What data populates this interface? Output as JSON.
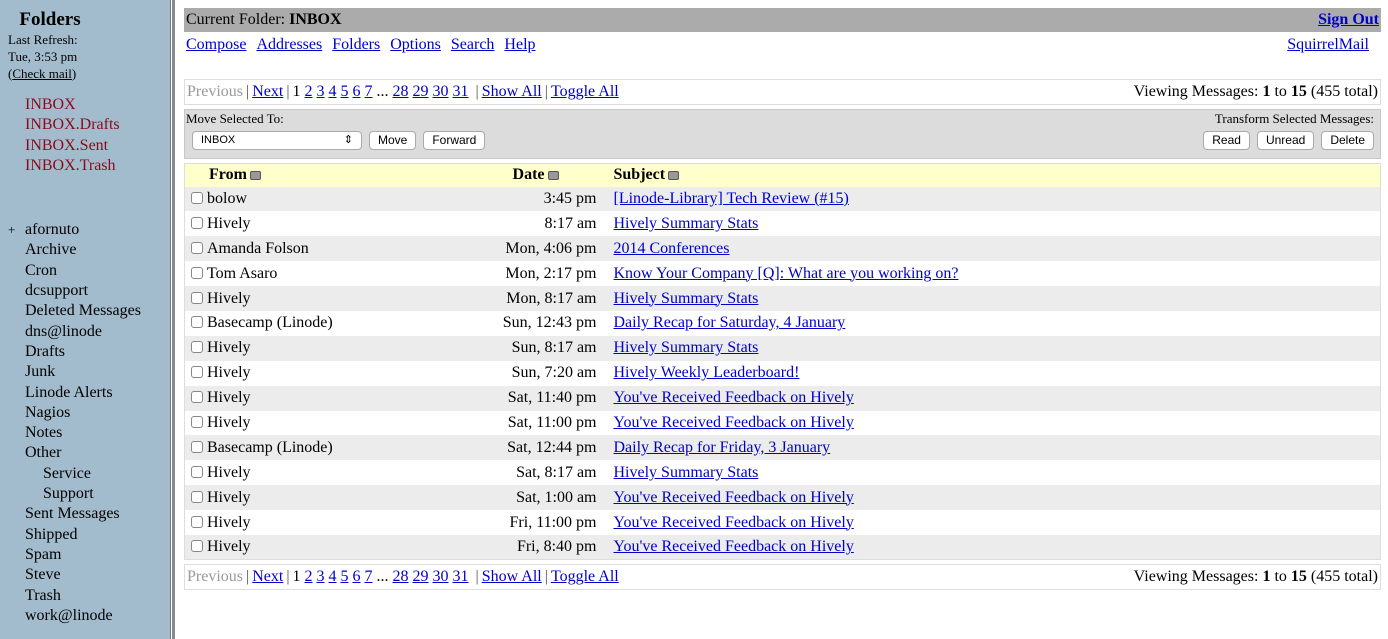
{
  "sidebar": {
    "title": "Folders",
    "last_refresh": "Last Refresh:",
    "refresh_time": "Tue, 3:53 pm",
    "check_mail": "Check mail",
    "inbox_folders": [
      "INBOX",
      "INBOX.Drafts",
      "INBOX.Sent",
      "INBOX.Trash"
    ],
    "folders": [
      {
        "label": "afornuto",
        "expand": "+"
      },
      {
        "label": "Archive"
      },
      {
        "label": "Cron"
      },
      {
        "label": "dcsupport"
      },
      {
        "label": "Deleted Messages"
      },
      {
        "label": "dns@linode"
      },
      {
        "label": "Drafts"
      },
      {
        "label": "Junk"
      },
      {
        "label": "Linode Alerts"
      },
      {
        "label": "Nagios"
      },
      {
        "label": "Notes"
      },
      {
        "label": "Other"
      },
      {
        "label": "Service",
        "sub": true
      },
      {
        "label": "Support",
        "sub": true
      },
      {
        "label": "Sent Messages"
      },
      {
        "label": "Shipped"
      },
      {
        "label": "Spam"
      },
      {
        "label": "Steve"
      },
      {
        "label": "Trash"
      },
      {
        "label": "work@linode"
      }
    ]
  },
  "header": {
    "current_folder_label": "Current Folder:",
    "current_folder": "INBOX",
    "sign_out": "Sign Out",
    "brand": "SquirrelMail",
    "nav": [
      "Compose",
      "Addresses",
      "Folders",
      "Options",
      "Search",
      "Help"
    ]
  },
  "pager": {
    "previous": "Previous",
    "next": "Next",
    "current": "1",
    "pages": [
      "2",
      "3",
      "4",
      "5",
      "6",
      "7"
    ],
    "ellipsis": "...",
    "last_pages": [
      "28",
      "29",
      "30",
      "31"
    ],
    "show_all": "Show All",
    "toggle_all": "Toggle All",
    "viewing_label": "Viewing Messages:",
    "from": "1",
    "to_word": "to",
    "to": "15",
    "total": "(455 total)"
  },
  "tools": {
    "move_label": "Move Selected To:",
    "folder_select": "INBOX",
    "move": "Move",
    "forward": "Forward",
    "transform_label": "Transform Selected Messages:",
    "read": "Read",
    "unread": "Unread",
    "delete": "Delete"
  },
  "table": {
    "columns": [
      "From",
      "Date",
      "Subject"
    ],
    "rows": [
      {
        "from": "bolow",
        "date": "3:45 pm",
        "subject": "[Linode-Library] Tech Review (#15)"
      },
      {
        "from": "Hively",
        "date": "8:17 am",
        "subject": "Hively Summary Stats"
      },
      {
        "from": "Amanda Folson",
        "date": "Mon, 4:06 pm",
        "subject": "2014 Conferences"
      },
      {
        "from": "Tom Asaro",
        "date": "Mon, 2:17 pm",
        "subject": "Know Your Company [Q]: What are you working on?"
      },
      {
        "from": "Hively",
        "date": "Mon, 8:17 am",
        "subject": "Hively Summary Stats"
      },
      {
        "from": "Basecamp (Linode)",
        "date": "Sun, 12:43 pm",
        "subject": "Daily Recap for Saturday, 4 January"
      },
      {
        "from": "Hively",
        "date": "Sun, 8:17 am",
        "subject": "Hively Summary Stats"
      },
      {
        "from": "Hively",
        "date": "Sun, 7:20 am",
        "subject": "Hively Weekly Leaderboard!"
      },
      {
        "from": "Hively",
        "date": "Sat, 11:40 pm",
        "subject": "You've Received Feedback on Hively"
      },
      {
        "from": "Hively",
        "date": "Sat, 11:00 pm",
        "subject": "You've Received Feedback on Hively"
      },
      {
        "from": "Basecamp (Linode)",
        "date": "Sat, 12:44 pm",
        "subject": "Daily Recap for Friday, 3 January"
      },
      {
        "from": "Hively",
        "date": "Sat, 8:17 am",
        "subject": "Hively Summary Stats"
      },
      {
        "from": "Hively",
        "date": "Sat, 1:00 am",
        "subject": "You've Received Feedback on Hively"
      },
      {
        "from": "Hively",
        "date": "Fri, 11:00 pm",
        "subject": "You've Received Feedback on Hively"
      },
      {
        "from": "Hively",
        "date": "Fri, 8:40 pm",
        "subject": "You've Received Feedback on Hively"
      }
    ]
  },
  "colors": {
    "sidebar_bg": "#a3bccd",
    "folder_red": "#8b0a1a",
    "link": "#0000cc",
    "header_bar": "#ababab",
    "table_header": "#ffffcc",
    "row_alt": "#ececec"
  }
}
